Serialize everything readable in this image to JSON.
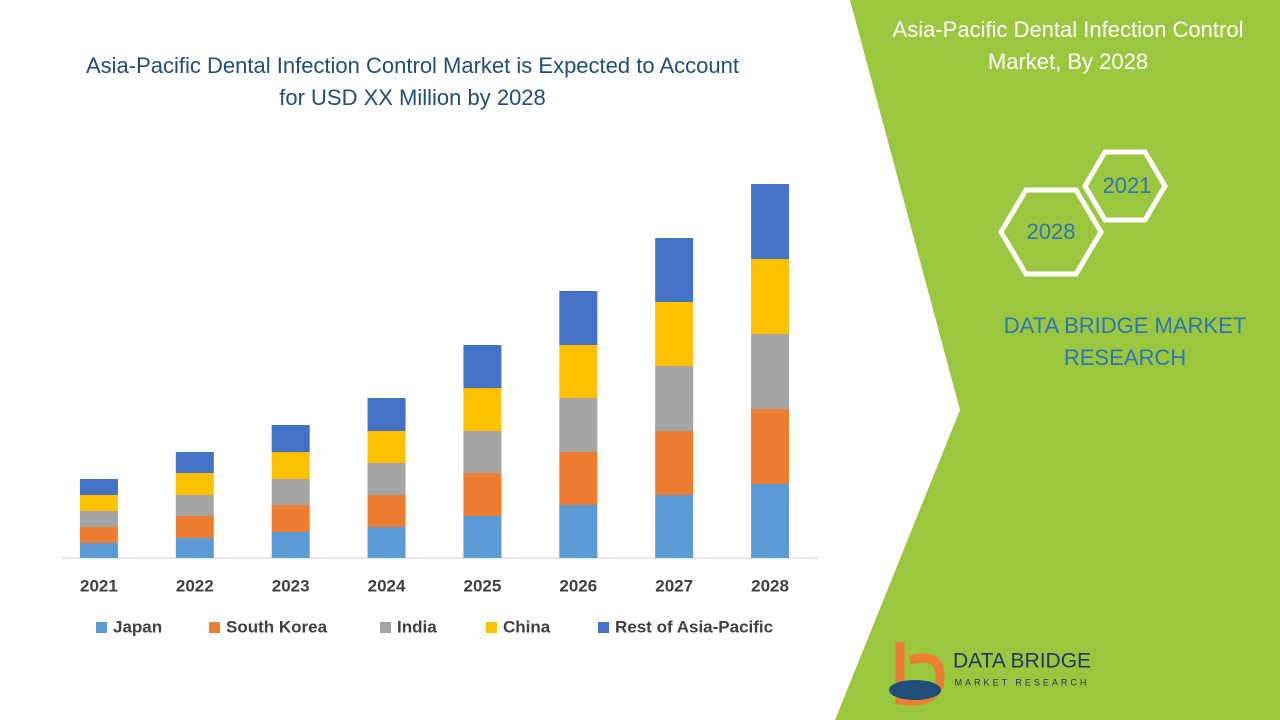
{
  "chart_data": {
    "type": "bar",
    "stacked": true,
    "title": "Asia-Pacific Dental Infection Control Market is Expected to Account for USD XX Million by 2028",
    "categories": [
      "2021",
      "2022",
      "2023",
      "2024",
      "2025",
      "2026",
      "2027",
      "2028"
    ],
    "series": [
      {
        "name": "Japan",
        "color": "#5b9bd5",
        "values": [
          15,
          20,
          26,
          31,
          42,
          53,
          63,
          74
        ]
      },
      {
        "name": "South Korea",
        "color": "#ed7d31",
        "values": [
          16,
          22,
          27,
          32,
          43,
          53,
          64,
          75
        ]
      },
      {
        "name": "India",
        "color": "#a5a5a5",
        "values": [
          16,
          21,
          26,
          32,
          42,
          54,
          65,
          75
        ]
      },
      {
        "name": "China",
        "color": "#ffc000",
        "values": [
          16,
          22,
          27,
          32,
          43,
          53,
          64,
          75
        ]
      },
      {
        "name": "Rest of Asia-Pacific",
        "color": "#4472c4",
        "values": [
          16,
          21,
          27,
          33,
          43,
          54,
          64,
          75
        ]
      }
    ],
    "ylim": [
      0,
      400
    ],
    "legend": "bottom"
  },
  "sidebar": {
    "title": "Asia-Pacific Dental Infection Control Market, By 2028",
    "hexagons": [
      "2021",
      "2028"
    ],
    "brand": "DATA BRIDGE MARKET RESEARCH"
  },
  "logo": {
    "name": "DATA BRIDGE",
    "tagline": "MARKET RESEARCH"
  }
}
